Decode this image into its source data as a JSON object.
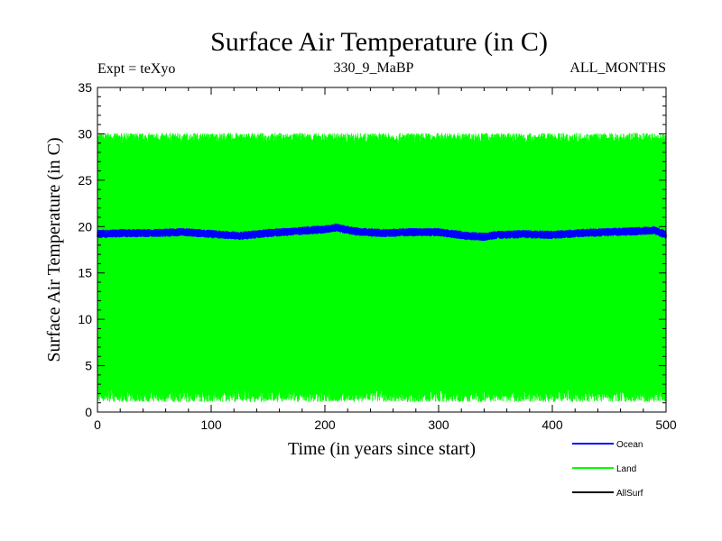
{
  "chart_data": {
    "type": "line",
    "title": "Surface Air Temperature (in C)",
    "subtitle_left": "Expt = teXyo",
    "subtitle_center": "330_9_MaBP",
    "subtitle_right": "ALL_MONTHS",
    "xlabel": "Time (in years since start)",
    "ylabel": "Surface Air Temperature (in C)",
    "xlim": [
      0,
      500
    ],
    "ylim": [
      0,
      35
    ],
    "x_ticks": [
      "0",
      "100",
      "200",
      "300",
      "400",
      "500"
    ],
    "y_ticks": [
      "0",
      "5",
      "10",
      "15",
      "20",
      "25",
      "30",
      "35"
    ],
    "x_tick_values": [
      0,
      100,
      200,
      300,
      400,
      500
    ],
    "y_tick_values": [
      0,
      5,
      10,
      15,
      20,
      25,
      30,
      35
    ],
    "grid": false,
    "legend_position": "bottom-right",
    "series": [
      {
        "name": "Ocean",
        "color": "#0000ff",
        "x": [
          0,
          25,
          50,
          75,
          100,
          125,
          150,
          175,
          200,
          210,
          225,
          250,
          275,
          300,
          325,
          340,
          350,
          375,
          400,
          425,
          450,
          475,
          490,
          500
        ],
        "y": [
          19.2,
          19.3,
          19.3,
          19.4,
          19.2,
          19.0,
          19.3,
          19.5,
          19.7,
          19.9,
          19.5,
          19.3,
          19.4,
          19.4,
          19.0,
          18.9,
          19.1,
          19.2,
          19.1,
          19.3,
          19.4,
          19.5,
          19.6,
          19.1
        ],
        "band_min": 18.7,
        "band_max": 20.1
      },
      {
        "name": "Land",
        "color": "#00ff00",
        "seasonal_min": 1.5,
        "seasonal_max": 29.5
      },
      {
        "name": "AllSurf",
        "color": "#000000"
      }
    ]
  }
}
